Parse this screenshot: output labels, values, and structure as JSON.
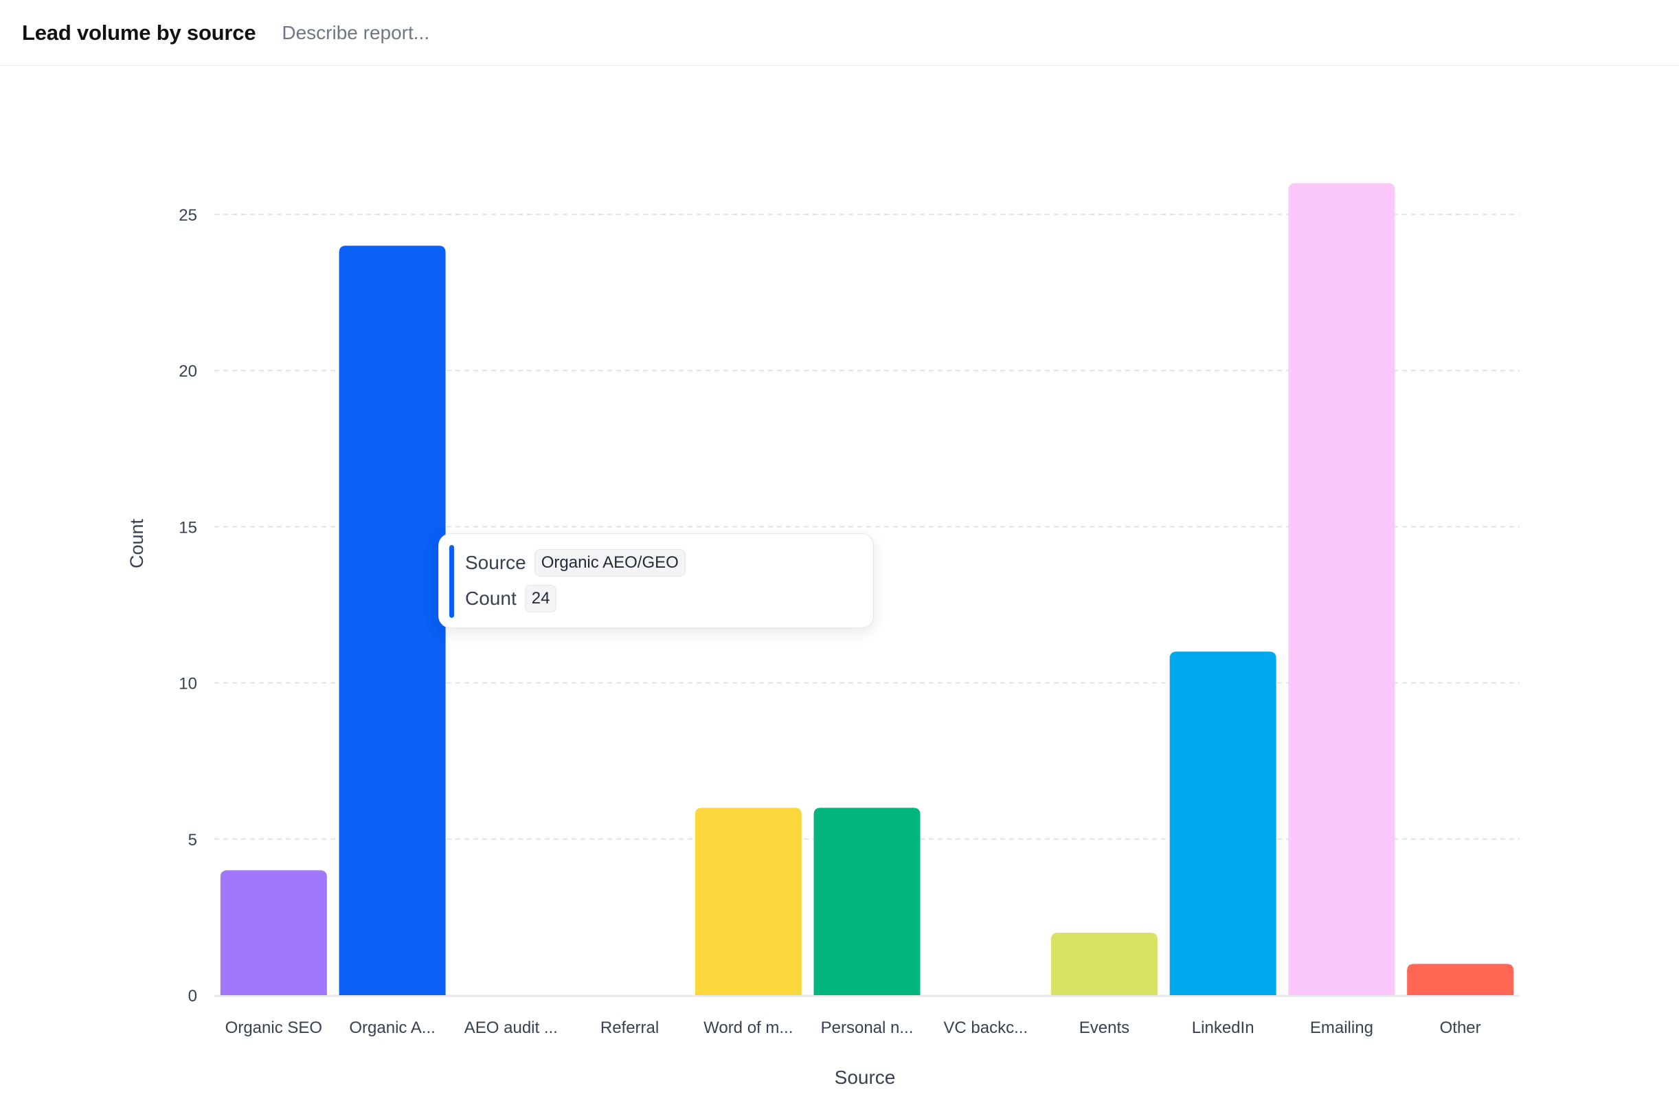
{
  "header": {
    "title": "Lead volume by source",
    "describe_placeholder": "Describe report..."
  },
  "chart_data": {
    "type": "bar",
    "xlabel": "Source",
    "ylabel": "Count",
    "ylim": [
      0,
      27
    ],
    "yticks": [
      0,
      5,
      10,
      15,
      20,
      25
    ],
    "grid": "horizontal-dashed",
    "categories": [
      "Organic SEO",
      "Organic A...",
      "AEO audit ...",
      "Referral",
      "Word of m...",
      "Personal n...",
      "VC backc...",
      "Events",
      "LinkedIn",
      "Emailing",
      "Other"
    ],
    "values": [
      4,
      24,
      0,
      0,
      6,
      6,
      0,
      2,
      11,
      26,
      1
    ],
    "colors": [
      "#a178fc",
      "#0a5ff5",
      "#8b5cf6",
      "#f97316",
      "#fad83c",
      "#00b57e",
      "#64748b",
      "#d8e366",
      "#00a8ed",
      "#fcc8fb",
      "#ff6654"
    ]
  },
  "tooltip": {
    "source_label": "Source",
    "source_value": "Organic AEO/GEO",
    "count_label": "Count",
    "count_value": "24",
    "accent": "#0a5ff5"
  }
}
